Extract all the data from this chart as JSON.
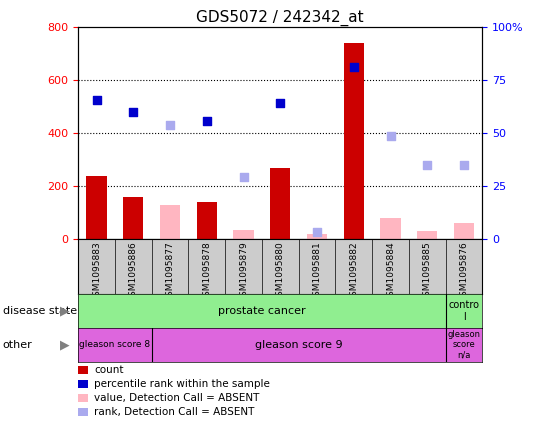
{
  "title": "GDS5072 / 242342_at",
  "samples": [
    "GSM1095883",
    "GSM1095886",
    "GSM1095877",
    "GSM1095878",
    "GSM1095879",
    "GSM1095880",
    "GSM1095881",
    "GSM1095882",
    "GSM1095884",
    "GSM1095885",
    "GSM1095876"
  ],
  "count_values": [
    240,
    158,
    null,
    140,
    null,
    270,
    null,
    740,
    null,
    null,
    null
  ],
  "count_absent": [
    null,
    null,
    130,
    null,
    35,
    null,
    20,
    null,
    80,
    30,
    60
  ],
  "rank_values": [
    525,
    480,
    null,
    445,
    null,
    515,
    null,
    650,
    null,
    null,
    null
  ],
  "rank_absent": [
    null,
    null,
    430,
    null,
    235,
    null,
    25,
    null,
    390,
    280,
    280
  ],
  "ylim_left": [
    0,
    800
  ],
  "ylim_right": [
    0,
    100
  ],
  "left_ticks": [
    0,
    200,
    400,
    600,
    800
  ],
  "right_ticks": [
    0,
    25,
    50,
    75,
    100
  ],
  "right_tick_labels": [
    "0",
    "25",
    "50",
    "75",
    "100%"
  ],
  "bar_color_red": "#CC0000",
  "bar_color_pink": "#FFB6C1",
  "dot_color_blue": "#0000CC",
  "dot_color_lightblue": "#AAAAEE",
  "green_color": "#90EE90",
  "magenta_color": "#DD66DD",
  "gray_color": "#CCCCCC",
  "label_disease_state": "disease state",
  "label_other": "other",
  "legend_items": [
    {
      "color": "#CC0000",
      "label": "count"
    },
    {
      "color": "#0000CC",
      "label": "percentile rank within the sample"
    },
    {
      "color": "#FFB6C1",
      "label": "value, Detection Call = ABSENT"
    },
    {
      "color": "#AAAAEE",
      "label": "rank, Detection Call = ABSENT"
    }
  ]
}
